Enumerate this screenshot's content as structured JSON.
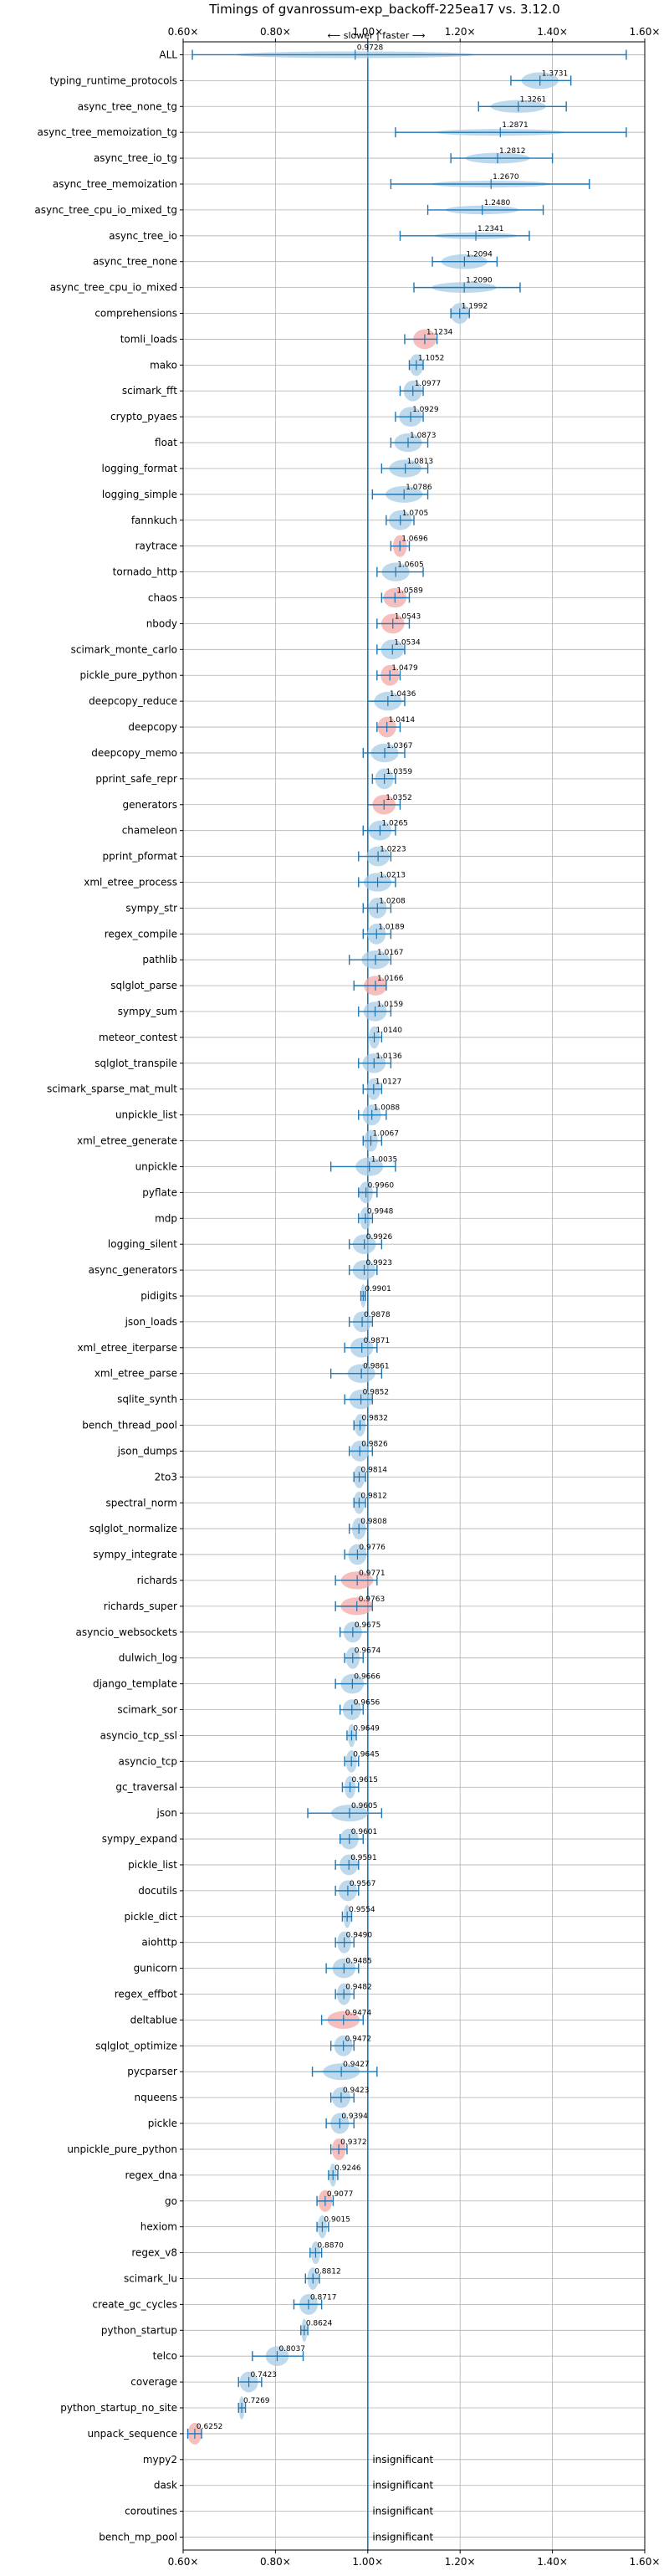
{
  "chart_data": {
    "type": "violin",
    "title": "Timings of gvanrossum-exp_backoff-225ea17 vs. 3.12.0",
    "direction_note": "⟵ slower | faster ⟶",
    "xlim": [
      0.6,
      1.6
    ],
    "x_ticks": [
      "0.60×",
      "0.80×",
      "1.00×",
      "1.20×",
      "1.40×",
      "1.60×"
    ],
    "x_tick_values": [
      0.6,
      0.8,
      1.0,
      1.2,
      1.4,
      1.6
    ],
    "reference_line": 1.0,
    "grid": true,
    "colors": {
      "normal": "#a9cce6",
      "highlight": "#f4a8a8",
      "line": "#1f77b4",
      "grid": "#b0b0b0"
    },
    "insignificant_label": "insignificant",
    "benchmarks": [
      {
        "name": "ALL",
        "value": 0.9728,
        "label": "0.9728",
        "lo": 0.62,
        "hi": 1.56,
        "spread": 0.26,
        "hl": false
      },
      {
        "name": "typing_runtime_protocols",
        "value": 1.3731,
        "label": "1.3731",
        "lo": 1.31,
        "hi": 1.44,
        "spread": 0.04,
        "hl": false
      },
      {
        "name": "async_tree_none_tg",
        "value": 1.3261,
        "label": "1.3261",
        "lo": 1.24,
        "hi": 1.43,
        "spread": 0.06,
        "hl": false
      },
      {
        "name": "async_tree_memoization_tg",
        "value": 1.2871,
        "label": "1.2871",
        "lo": 1.06,
        "hi": 1.56,
        "spread": 0.14,
        "hl": false
      },
      {
        "name": "async_tree_io_tg",
        "value": 1.2812,
        "label": "1.2812",
        "lo": 1.18,
        "hi": 1.4,
        "spread": 0.07,
        "hl": false
      },
      {
        "name": "async_tree_memoization",
        "value": 1.267,
        "label": "1.2670",
        "lo": 1.05,
        "hi": 1.48,
        "spread": 0.13,
        "hl": false
      },
      {
        "name": "async_tree_cpu_io_mixed_tg",
        "value": 1.248,
        "label": "1.2480",
        "lo": 1.13,
        "hi": 1.38,
        "spread": 0.08,
        "hl": false
      },
      {
        "name": "async_tree_io",
        "value": 1.2341,
        "label": "1.2341",
        "lo": 1.07,
        "hi": 1.35,
        "spread": 0.09,
        "hl": false
      },
      {
        "name": "async_tree_none",
        "value": 1.2094,
        "label": "1.2094",
        "lo": 1.14,
        "hi": 1.28,
        "spread": 0.05,
        "hl": false
      },
      {
        "name": "async_tree_cpu_io_mixed",
        "value": 1.209,
        "label": "1.2090",
        "lo": 1.1,
        "hi": 1.33,
        "spread": 0.07,
        "hl": false
      },
      {
        "name": "comprehensions",
        "value": 1.1992,
        "label": "1.1992",
        "lo": 1.18,
        "hi": 1.22,
        "spread": 0.02,
        "hl": false
      },
      {
        "name": "tomli_loads",
        "value": 1.1234,
        "label": "1.1234",
        "lo": 1.08,
        "hi": 1.15,
        "spread": 0.025,
        "hl": true
      },
      {
        "name": "mako",
        "value": 1.1052,
        "label": "1.1052",
        "lo": 1.09,
        "hi": 1.12,
        "spread": 0.015,
        "hl": false
      },
      {
        "name": "scimark_fft",
        "value": 1.0977,
        "label": "1.0977",
        "lo": 1.07,
        "hi": 1.12,
        "spread": 0.02,
        "hl": false
      },
      {
        "name": "crypto_pyaes",
        "value": 1.0929,
        "label": "1.0929",
        "lo": 1.06,
        "hi": 1.12,
        "spread": 0.025,
        "hl": false
      },
      {
        "name": "float",
        "value": 1.0873,
        "label": "1.0873",
        "lo": 1.05,
        "hi": 1.13,
        "spread": 0.03,
        "hl": false
      },
      {
        "name": "logging_format",
        "value": 1.0813,
        "label": "1.0813",
        "lo": 1.03,
        "hi": 1.13,
        "spread": 0.035,
        "hl": false
      },
      {
        "name": "logging_simple",
        "value": 1.0786,
        "label": "1.0786",
        "lo": 1.01,
        "hi": 1.13,
        "spread": 0.04,
        "hl": false
      },
      {
        "name": "fannkuch",
        "value": 1.0705,
        "label": "1.0705",
        "lo": 1.04,
        "hi": 1.1,
        "spread": 0.025,
        "hl": false
      },
      {
        "name": "raytrace",
        "value": 1.0696,
        "label": "1.0696",
        "lo": 1.05,
        "hi": 1.09,
        "spread": 0.015,
        "hl": true
      },
      {
        "name": "tornado_http",
        "value": 1.0605,
        "label": "1.0605",
        "lo": 1.02,
        "hi": 1.12,
        "spread": 0.03,
        "hl": false
      },
      {
        "name": "chaos",
        "value": 1.0589,
        "label": "1.0589",
        "lo": 1.03,
        "hi": 1.09,
        "spread": 0.025,
        "hl": true
      },
      {
        "name": "nbody",
        "value": 1.0543,
        "label": "1.0543",
        "lo": 1.02,
        "hi": 1.09,
        "spread": 0.025,
        "hl": true
      },
      {
        "name": "scimark_monte_carlo",
        "value": 1.0534,
        "label": "1.0534",
        "lo": 1.02,
        "hi": 1.08,
        "spread": 0.025,
        "hl": false
      },
      {
        "name": "pickle_pure_python",
        "value": 1.0479,
        "label": "1.0479",
        "lo": 1.02,
        "hi": 1.07,
        "spread": 0.02,
        "hl": true
      },
      {
        "name": "deepcopy_reduce",
        "value": 1.0436,
        "label": "1.0436",
        "lo": 1.0,
        "hi": 1.08,
        "spread": 0.03,
        "hl": false
      },
      {
        "name": "deepcopy",
        "value": 1.0414,
        "label": "1.0414",
        "lo": 1.02,
        "hi": 1.07,
        "spread": 0.02,
        "hl": true
      },
      {
        "name": "deepcopy_memo",
        "value": 1.0367,
        "label": "1.0367",
        "lo": 0.99,
        "hi": 1.08,
        "spread": 0.03,
        "hl": false
      },
      {
        "name": "pprint_safe_repr",
        "value": 1.0359,
        "label": "1.0359",
        "lo": 1.01,
        "hi": 1.06,
        "spread": 0.02,
        "hl": false
      },
      {
        "name": "generators",
        "value": 1.0352,
        "label": "1.0352",
        "lo": 1.0,
        "hi": 1.07,
        "spread": 0.025,
        "hl": true
      },
      {
        "name": "chameleon",
        "value": 1.0265,
        "label": "1.0265",
        "lo": 0.99,
        "hi": 1.06,
        "spread": 0.025,
        "hl": false
      },
      {
        "name": "pprint_pformat",
        "value": 1.0223,
        "label": "1.0223",
        "lo": 0.98,
        "hi": 1.05,
        "spread": 0.025,
        "hl": false
      },
      {
        "name": "xml_etree_process",
        "value": 1.0213,
        "label": "1.0213",
        "lo": 0.98,
        "hi": 1.06,
        "spread": 0.03,
        "hl": false
      },
      {
        "name": "sympy_str",
        "value": 1.0208,
        "label": "1.0208",
        "lo": 0.99,
        "hi": 1.05,
        "spread": 0.02,
        "hl": false
      },
      {
        "name": "regex_compile",
        "value": 1.0189,
        "label": "1.0189",
        "lo": 0.99,
        "hi": 1.05,
        "spread": 0.02,
        "hl": false
      },
      {
        "name": "pathlib",
        "value": 1.0167,
        "label": "1.0167",
        "lo": 0.96,
        "hi": 1.05,
        "spread": 0.03,
        "hl": false
      },
      {
        "name": "sqlglot_parse",
        "value": 1.0166,
        "label": "1.0166",
        "lo": 0.97,
        "hi": 1.04,
        "spread": 0.025,
        "hl": true
      },
      {
        "name": "sympy_sum",
        "value": 1.0159,
        "label": "1.0159",
        "lo": 0.98,
        "hi": 1.05,
        "spread": 0.025,
        "hl": false
      },
      {
        "name": "meteor_contest",
        "value": 1.014,
        "label": "1.0140",
        "lo": 1.0,
        "hi": 1.03,
        "spread": 0.012,
        "hl": false
      },
      {
        "name": "sqlglot_transpile",
        "value": 1.0136,
        "label": "1.0136",
        "lo": 0.98,
        "hi": 1.05,
        "spread": 0.025,
        "hl": false
      },
      {
        "name": "scimark_sparse_mat_mult",
        "value": 1.0127,
        "label": "1.0127",
        "lo": 0.99,
        "hi": 1.03,
        "spread": 0.015,
        "hl": false
      },
      {
        "name": "unpickle_list",
        "value": 1.0088,
        "label": "1.0088",
        "lo": 0.98,
        "hi": 1.04,
        "spread": 0.02,
        "hl": false
      },
      {
        "name": "xml_etree_generate",
        "value": 1.0067,
        "label": "1.0067",
        "lo": 0.99,
        "hi": 1.03,
        "spread": 0.015,
        "hl": false
      },
      {
        "name": "unpickle",
        "value": 1.0035,
        "label": "1.0035",
        "lo": 0.92,
        "hi": 1.06,
        "spread": 0.03,
        "hl": false
      },
      {
        "name": "pyflate",
        "value": 0.996,
        "label": "0.9960",
        "lo": 0.98,
        "hi": 1.02,
        "spread": 0.015,
        "hl": false
      },
      {
        "name": "mdp",
        "value": 0.9948,
        "label": "0.9948",
        "lo": 0.98,
        "hi": 1.01,
        "spread": 0.012,
        "hl": false
      },
      {
        "name": "logging_silent",
        "value": 0.9926,
        "label": "0.9926",
        "lo": 0.96,
        "hi": 1.03,
        "spread": 0.025,
        "hl": false
      },
      {
        "name": "async_generators",
        "value": 0.9923,
        "label": "0.9923",
        "lo": 0.96,
        "hi": 1.02,
        "spread": 0.025,
        "hl": false
      },
      {
        "name": "pidigits",
        "value": 0.9901,
        "label": "0.9901",
        "lo": 0.985,
        "hi": 0.995,
        "spread": 0.006,
        "hl": false
      },
      {
        "name": "json_loads",
        "value": 0.9878,
        "label": "0.9878",
        "lo": 0.96,
        "hi": 1.01,
        "spread": 0.02,
        "hl": false
      },
      {
        "name": "xml_etree_iterparse",
        "value": 0.9871,
        "label": "0.9871",
        "lo": 0.95,
        "hi": 1.02,
        "spread": 0.025,
        "hl": false
      },
      {
        "name": "xml_etree_parse",
        "value": 0.9861,
        "label": "0.9861",
        "lo": 0.92,
        "hi": 1.03,
        "spread": 0.03,
        "hl": false
      },
      {
        "name": "sqlite_synth",
        "value": 0.9852,
        "label": "0.9852",
        "lo": 0.95,
        "hi": 1.01,
        "spread": 0.025,
        "hl": false
      },
      {
        "name": "bench_thread_pool",
        "value": 0.9832,
        "label": "0.9832",
        "lo": 0.97,
        "hi": 1.0,
        "spread": 0.012,
        "hl": false
      },
      {
        "name": "json_dumps",
        "value": 0.9826,
        "label": "0.9826",
        "lo": 0.96,
        "hi": 1.01,
        "spread": 0.02,
        "hl": false
      },
      {
        "name": "2to3",
        "value": 0.9814,
        "label": "0.9814",
        "lo": 0.97,
        "hi": 0.995,
        "spread": 0.012,
        "hl": false
      },
      {
        "name": "spectral_norm",
        "value": 0.9812,
        "label": "0.9812",
        "lo": 0.97,
        "hi": 0.995,
        "spread": 0.012,
        "hl": false
      },
      {
        "name": "sqlglot_normalize",
        "value": 0.9808,
        "label": "0.9808",
        "lo": 0.96,
        "hi": 1.0,
        "spread": 0.015,
        "hl": false
      },
      {
        "name": "sympy_integrate",
        "value": 0.9776,
        "label": "0.9776",
        "lo": 0.95,
        "hi": 1.0,
        "spread": 0.02,
        "hl": false
      },
      {
        "name": "richards",
        "value": 0.9771,
        "label": "0.9771",
        "lo": 0.93,
        "hi": 1.02,
        "spread": 0.035,
        "hl": true
      },
      {
        "name": "richards_super",
        "value": 0.9763,
        "label": "0.9763",
        "lo": 0.93,
        "hi": 1.01,
        "spread": 0.035,
        "hl": true
      },
      {
        "name": "asyncio_websockets",
        "value": 0.9675,
        "label": "0.9675",
        "lo": 0.94,
        "hi": 1.0,
        "spread": 0.02,
        "hl": false
      },
      {
        "name": "dulwich_log",
        "value": 0.9674,
        "label": "0.9674",
        "lo": 0.95,
        "hi": 0.99,
        "spread": 0.015,
        "hl": false
      },
      {
        "name": "django_template",
        "value": 0.9666,
        "label": "0.9666",
        "lo": 0.93,
        "hi": 1.0,
        "spread": 0.025,
        "hl": false
      },
      {
        "name": "scimark_sor",
        "value": 0.9656,
        "label": "0.9656",
        "lo": 0.94,
        "hi": 0.99,
        "spread": 0.02,
        "hl": false
      },
      {
        "name": "asyncio_tcp_ssl",
        "value": 0.9649,
        "label": "0.9649",
        "lo": 0.955,
        "hi": 0.975,
        "spread": 0.008,
        "hl": false
      },
      {
        "name": "asyncio_tcp",
        "value": 0.9645,
        "label": "0.9645",
        "lo": 0.95,
        "hi": 0.98,
        "spread": 0.012,
        "hl": false
      },
      {
        "name": "gc_traversal",
        "value": 0.9615,
        "label": "0.9615",
        "lo": 0.945,
        "hi": 0.98,
        "spread": 0.012,
        "hl": false
      },
      {
        "name": "json",
        "value": 0.9605,
        "label": "0.9605",
        "lo": 0.87,
        "hi": 1.03,
        "spread": 0.04,
        "hl": false
      },
      {
        "name": "sympy_expand",
        "value": 0.9601,
        "label": "0.9601",
        "lo": 0.94,
        "hi": 0.99,
        "spread": 0.02,
        "hl": false
      },
      {
        "name": "pickle_list",
        "value": 0.9591,
        "label": "0.9591",
        "lo": 0.93,
        "hi": 0.98,
        "spread": 0.02,
        "hl": false
      },
      {
        "name": "docutils",
        "value": 0.9567,
        "label": "0.9567",
        "lo": 0.93,
        "hi": 0.98,
        "spread": 0.02,
        "hl": false
      },
      {
        "name": "pickle_dict",
        "value": 0.9554,
        "label": "0.9554",
        "lo": 0.945,
        "hi": 0.965,
        "spread": 0.008,
        "hl": false
      },
      {
        "name": "aiohttp",
        "value": 0.949,
        "label": "0.9490",
        "lo": 0.93,
        "hi": 0.97,
        "spread": 0.015,
        "hl": false
      },
      {
        "name": "gunicorn",
        "value": 0.9485,
        "label": "0.9485",
        "lo": 0.91,
        "hi": 0.98,
        "spread": 0.025,
        "hl": false
      },
      {
        "name": "regex_effbot",
        "value": 0.9482,
        "label": "0.9482",
        "lo": 0.93,
        "hi": 0.97,
        "spread": 0.015,
        "hl": false
      },
      {
        "name": "deltablue",
        "value": 0.9474,
        "label": "0.9474",
        "lo": 0.9,
        "hi": 0.99,
        "spread": 0.035,
        "hl": true
      },
      {
        "name": "sqlglot_optimize",
        "value": 0.9472,
        "label": "0.9472",
        "lo": 0.92,
        "hi": 0.97,
        "spread": 0.02,
        "hl": false
      },
      {
        "name": "pycparser",
        "value": 0.9427,
        "label": "0.9427",
        "lo": 0.88,
        "hi": 1.02,
        "spread": 0.04,
        "hl": false
      },
      {
        "name": "nqueens",
        "value": 0.9423,
        "label": "0.9423",
        "lo": 0.92,
        "hi": 0.97,
        "spread": 0.02,
        "hl": false
      },
      {
        "name": "pickle",
        "value": 0.9394,
        "label": "0.9394",
        "lo": 0.91,
        "hi": 0.97,
        "spread": 0.02,
        "hl": false
      },
      {
        "name": "unpickle_pure_python",
        "value": 0.9372,
        "label": "0.9372",
        "lo": 0.92,
        "hi": 0.955,
        "spread": 0.015,
        "hl": true
      },
      {
        "name": "regex_dna",
        "value": 0.9246,
        "label": "0.9246",
        "lo": 0.915,
        "hi": 0.935,
        "spread": 0.008,
        "hl": false
      },
      {
        "name": "go",
        "value": 0.9077,
        "label": "0.9077",
        "lo": 0.89,
        "hi": 0.925,
        "spread": 0.015,
        "hl": true
      },
      {
        "name": "hexiom",
        "value": 0.9015,
        "label": "0.9015",
        "lo": 0.89,
        "hi": 0.915,
        "spread": 0.01,
        "hl": false
      },
      {
        "name": "regex_v8",
        "value": 0.887,
        "label": "0.8870",
        "lo": 0.875,
        "hi": 0.9,
        "spread": 0.01,
        "hl": false
      },
      {
        "name": "scimark_lu",
        "value": 0.8812,
        "label": "0.8812",
        "lo": 0.865,
        "hi": 0.895,
        "spread": 0.012,
        "hl": false
      },
      {
        "name": "create_gc_cycles",
        "value": 0.8717,
        "label": "0.8717",
        "lo": 0.84,
        "hi": 0.9,
        "spread": 0.02,
        "hl": false
      },
      {
        "name": "python_startup",
        "value": 0.8624,
        "label": "0.8624",
        "lo": 0.855,
        "hi": 0.87,
        "spread": 0.006,
        "hl": false
      },
      {
        "name": "telco",
        "value": 0.8037,
        "label": "0.8037",
        "lo": 0.75,
        "hi": 0.86,
        "spread": 0.025,
        "hl": false
      },
      {
        "name": "coverage",
        "value": 0.7423,
        "label": "0.7423",
        "lo": 0.72,
        "hi": 0.77,
        "spread": 0.02,
        "hl": false
      },
      {
        "name": "python_startup_no_site",
        "value": 0.7269,
        "label": "0.7269",
        "lo": 0.72,
        "hi": 0.735,
        "spread": 0.006,
        "hl": false
      },
      {
        "name": "unpack_sequence",
        "value": 0.6252,
        "label": "0.6252",
        "lo": 0.61,
        "hi": 0.64,
        "spread": 0.015,
        "hl": true
      },
      {
        "name": "mypy2",
        "value": null,
        "label": "insignificant",
        "hl": false
      },
      {
        "name": "dask",
        "value": null,
        "label": "insignificant",
        "hl": false
      },
      {
        "name": "coroutines",
        "value": null,
        "label": "insignificant",
        "hl": false
      },
      {
        "name": "bench_mp_pool",
        "value": null,
        "label": "insignificant",
        "hl": false
      }
    ]
  }
}
